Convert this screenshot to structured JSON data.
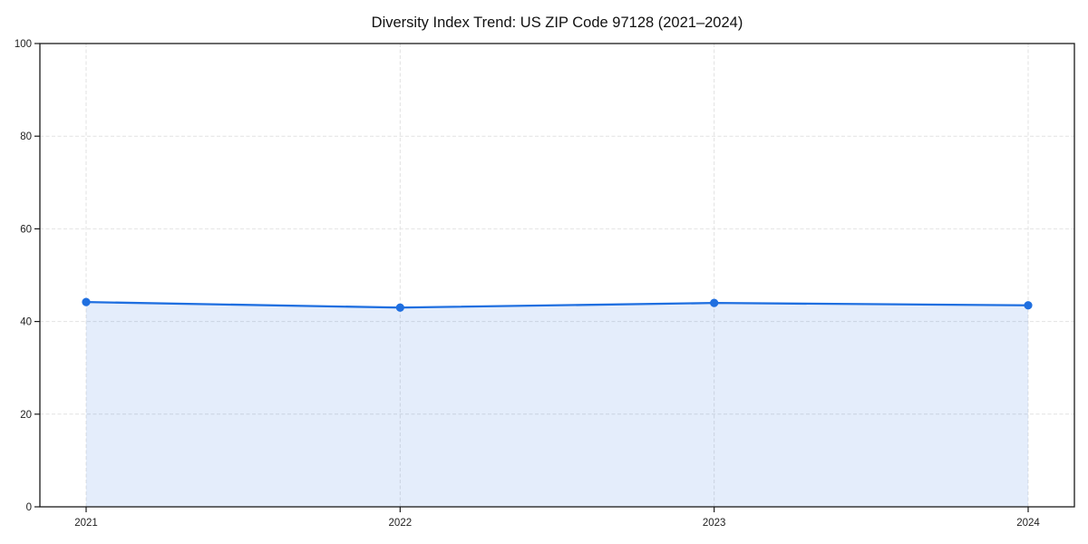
{
  "chart_data": {
    "type": "area",
    "title": "Diversity Index Trend: US ZIP Code 97128 (2021–2024)",
    "categories": [
      "2021",
      "2022",
      "2023",
      "2024"
    ],
    "series": [
      {
        "name": "Diversity Index",
        "values": [
          44.2,
          43.0,
          44.0,
          43.5
        ]
      }
    ],
    "xlabel": "",
    "ylabel": "",
    "ylim": [
      0,
      100
    ],
    "yticks": [
      0,
      20,
      40,
      60,
      80,
      100
    ],
    "grid": "dashed, both axes",
    "legend": "none",
    "colors": {
      "line": "#1f6fe0",
      "marker": "#1f6fe0",
      "fill": "#1f6fe0",
      "fill_opacity": 0.12,
      "grid": "#e2e2e2",
      "spine": "#1a1a1a",
      "background": "#ffffff"
    }
  }
}
